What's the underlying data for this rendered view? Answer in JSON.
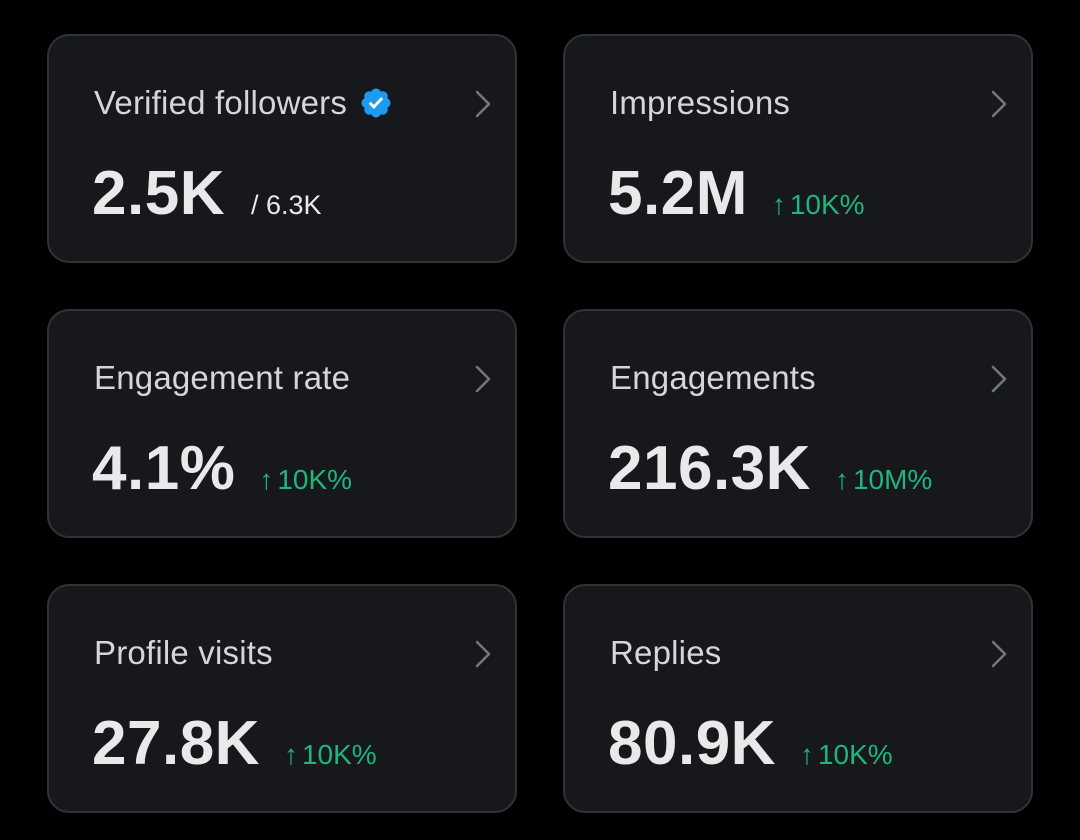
{
  "colors": {
    "background": "#000000",
    "card_background": "#16181c",
    "card_border": "#2f3336",
    "trend_up": "#1fb57d",
    "verified_badge": "#1d9bf0"
  },
  "cards": [
    {
      "title": "Verified followers",
      "value": "2.5K",
      "sub_value": "/ 6.3K",
      "icon": "verified-badge-icon"
    },
    {
      "title": "Impressions",
      "value": "5.2M",
      "trend_arrow": "↑",
      "trend": "10K%"
    },
    {
      "title": "Engagement rate",
      "value": "4.1%",
      "trend_arrow": "↑",
      "trend": "10K%"
    },
    {
      "title": "Engagements",
      "value": "216.3K",
      "trend_arrow": "↑",
      "trend": "10M%"
    },
    {
      "title": "Profile visits",
      "value": "27.8K",
      "trend_arrow": "↑",
      "trend": "10K%"
    },
    {
      "title": "Replies",
      "value": "80.9K",
      "trend_arrow": "↑",
      "trend": "10K%"
    }
  ]
}
